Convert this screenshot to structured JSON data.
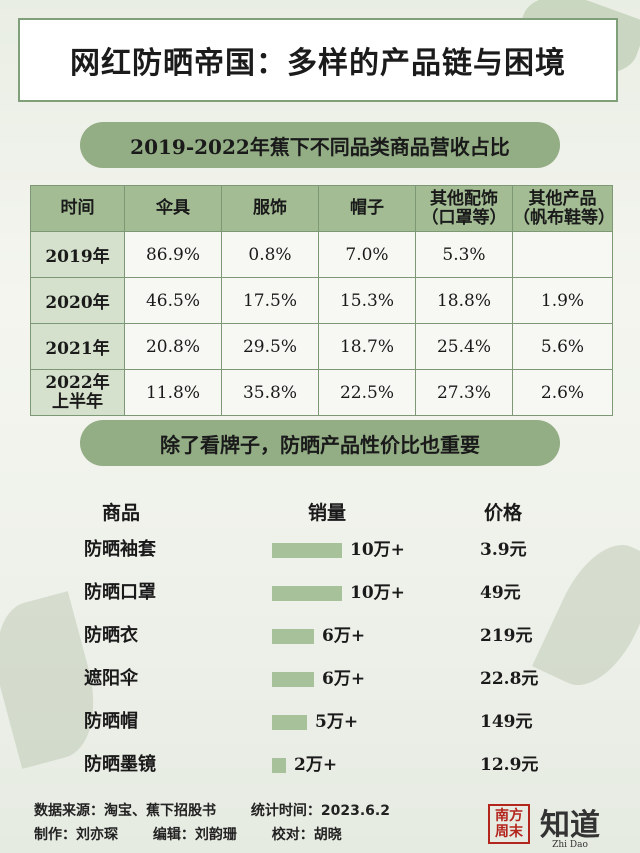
{
  "title": "网红防晒帝国：多样的产品链与困境",
  "section1_title": "2019-2022年蕉下不同品类商品营收占比",
  "section2_title": "除了看牌子，防晒产品性价比也重要",
  "revenue_table": {
    "headers": [
      "时间",
      "伞具",
      "服饰",
      "帽子",
      "其他配饰（口罩等）",
      "其他产品（帆布鞋等）"
    ],
    "rows": [
      {
        "year": "2019年",
        "values": [
          "86.9%",
          "0.8%",
          "7.0%",
          "5.3%",
          ""
        ]
      },
      {
        "year": "2020年",
        "values": [
          "46.5%",
          "17.5%",
          "15.3%",
          "18.8%",
          "1.9%"
        ]
      },
      {
        "year": "2021年",
        "values": [
          "20.8%",
          "29.5%",
          "18.7%",
          "25.4%",
          "5.6%"
        ]
      },
      {
        "year": "2022年上半年",
        "values": [
          "11.8%",
          "35.8%",
          "22.5%",
          "27.3%",
          "2.6%"
        ]
      }
    ]
  },
  "products": {
    "header_name": "商品",
    "header_sales": "销量",
    "header_price": "价格"
  },
  "chart_data": {
    "type": "bar",
    "categories": [
      "防晒袖套",
      "防晒口罩",
      "防晒衣",
      "遮阳伞",
      "防晒帽",
      "防晒墨镜"
    ],
    "values": [
      10,
      10,
      6,
      6,
      5,
      2
    ],
    "value_labels": [
      "10万+",
      "10万+",
      "6万+",
      "6万+",
      "5万+",
      "2万+"
    ],
    "prices": [
      "3.9元",
      "49元",
      "219元",
      "22.8元",
      "149元",
      "12.9元"
    ],
    "title": "除了看牌子，防晒产品性价比也重要",
    "xlabel": "",
    "ylabel": "销量",
    "xlim": [
      0,
      10
    ]
  },
  "footer": {
    "source": "数据来源：淘宝、蕉下招股书",
    "stat_time": "统计时间：2023.6.2",
    "producer": "制作：刘亦琛",
    "editor": "编辑：刘韵珊",
    "proofreader": "校对：胡晓"
  },
  "logos": {
    "logo1_text": "南方周末",
    "logo2_text": "知道",
    "logo2_sub": "Zhi Dao"
  },
  "colors": {
    "accent_green": "#93ad85",
    "bar_green": "#a7c29a",
    "logo_red": "#b3261e"
  }
}
